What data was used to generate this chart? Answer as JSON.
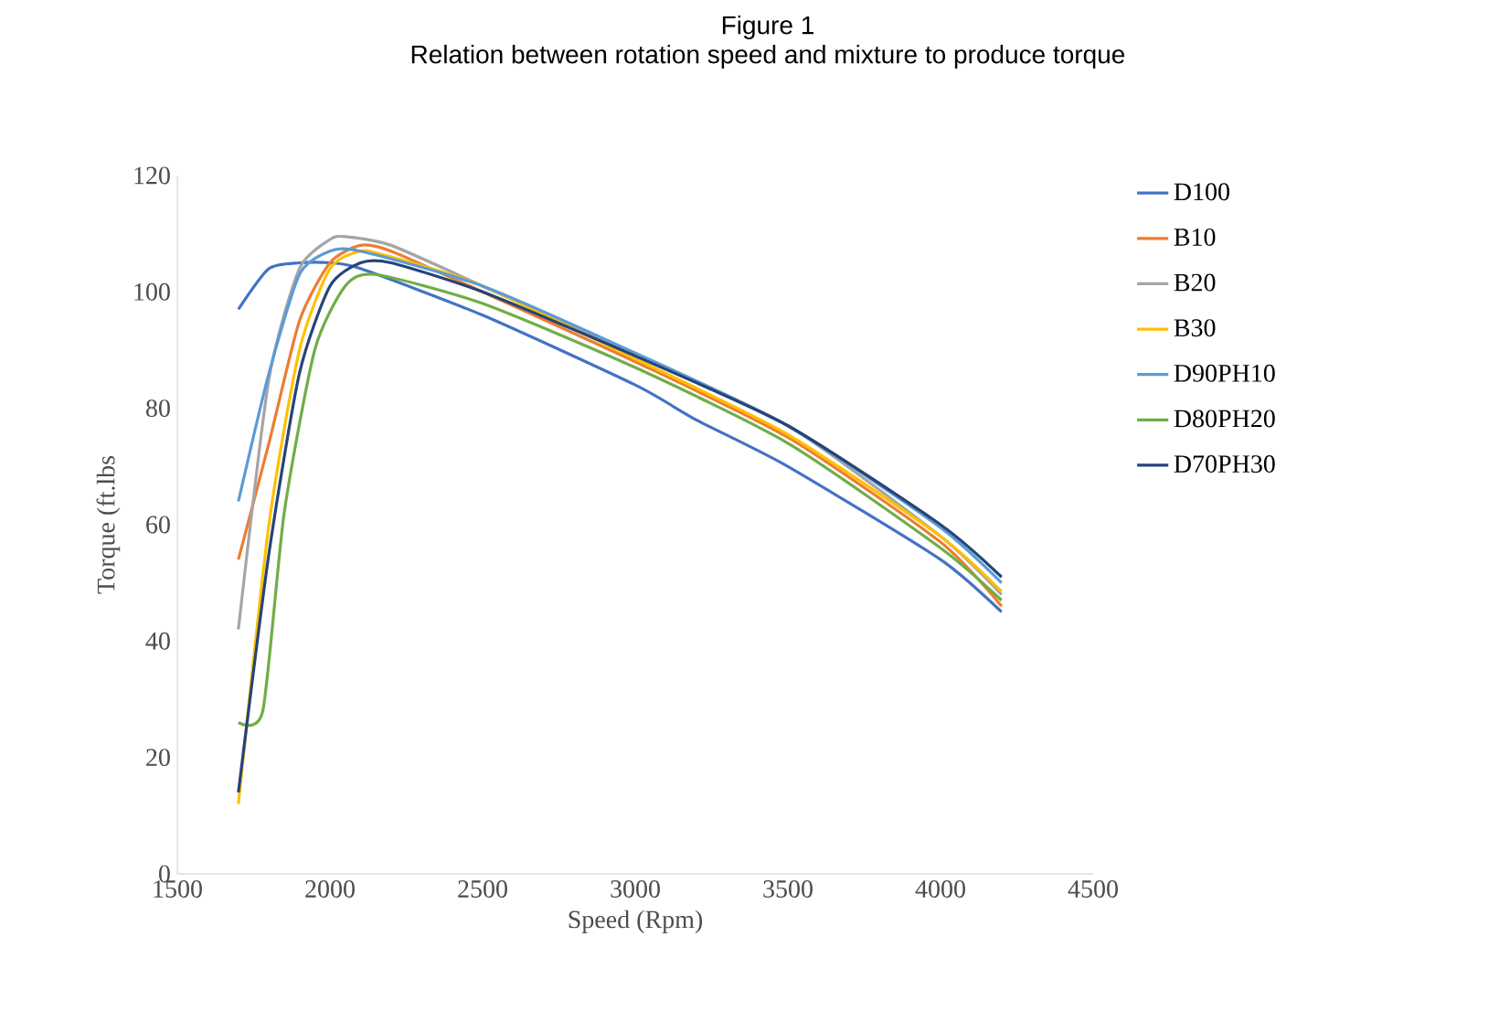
{
  "chart_data": {
    "type": "line",
    "title": "Figure 1",
    "subtitle": "Relation between rotation speed and mixture to produce torque",
    "xlabel": "Speed (Rpm)",
    "ylabel": "Torque (ft.lbs",
    "xlim": [
      1500,
      4500
    ],
    "ylim": [
      0,
      120
    ],
    "xticks": [
      1500,
      2000,
      2500,
      3000,
      3500,
      4000,
      4500
    ],
    "yticks": [
      0,
      20,
      40,
      60,
      80,
      100,
      120
    ],
    "legend": "right",
    "marker": "none",
    "line_style": "solid",
    "grid": false,
    "series": [
      {
        "name": "D100",
        "color": "#4472c4",
        "x": [
          1700,
          1800,
          1900,
          2000,
          2100,
          2500,
          3000,
          3200,
          3500,
          4000,
          4200
        ],
        "values": [
          97,
          104,
          105,
          105,
          104,
          96,
          84,
          78,
          70,
          54,
          45
        ]
      },
      {
        "name": "B10",
        "color": "#ed7d31",
        "x": [
          1700,
          1800,
          1900,
          2000,
          2100,
          2200,
          2500,
          3000,
          3500,
          4000,
          4200
        ],
        "values": [
          54,
          74,
          95,
          105,
          108,
          107,
          100,
          88,
          75,
          57,
          46
        ]
      },
      {
        "name": "B20",
        "color": "#a5a5a5",
        "x": [
          1700,
          1800,
          1900,
          2000,
          2050,
          2200,
          2500,
          3000,
          3500,
          4000,
          4200
        ],
        "values": [
          42,
          85,
          104,
          109,
          109.5,
          108,
          101,
          89,
          77,
          58,
          48
        ]
      },
      {
        "name": "B30",
        "color": "#ffc000",
        "x": [
          1700,
          1800,
          1900,
          2000,
          2100,
          2200,
          2500,
          3000,
          3500,
          4000,
          4200
        ],
        "values": [
          12,
          60,
          90,
          104,
          107,
          106,
          101,
          88.5,
          75.5,
          58,
          48.5
        ]
      },
      {
        "name": "D90PH10",
        "color": "#5b9bd5",
        "x": [
          1700,
          1800,
          1900,
          2000,
          2100,
          2500,
          3000,
          3500,
          4000,
          4200
        ],
        "values": [
          64,
          86,
          103,
          107,
          107,
          101,
          89.5,
          77,
          59.5,
          50
        ]
      },
      {
        "name": "D80PH20",
        "color": "#70ad47",
        "x": [
          1700,
          1780,
          1850,
          1950,
          2050,
          2150,
          2500,
          3000,
          3500,
          4000,
          4200
        ],
        "values": [
          26,
          28,
          62,
          90,
          101,
          103,
          98,
          87,
          74,
          56,
          47
        ]
      },
      {
        "name": "D70PH30",
        "color": "#264478",
        "x": [
          1700,
          1800,
          1900,
          2000,
          2100,
          2200,
          2500,
          3000,
          3500,
          4000,
          4200
        ],
        "values": [
          14,
          55,
          86,
          101,
          105,
          105,
          100,
          89,
          77,
          60,
          51
        ]
      }
    ]
  }
}
